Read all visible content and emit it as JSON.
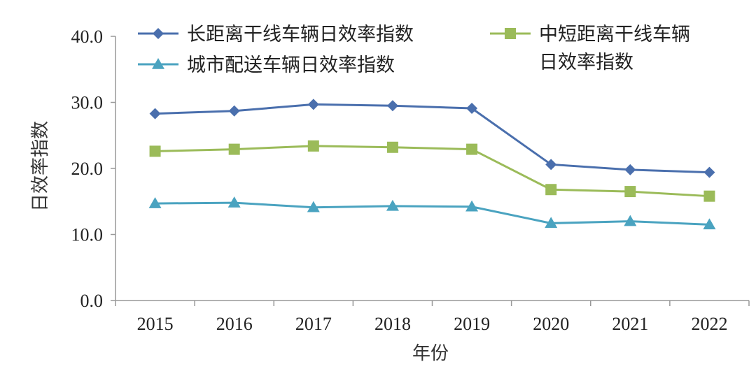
{
  "chart_data": {
    "type": "line",
    "title": "",
    "xlabel": "年份",
    "ylabel": "日效率指数",
    "ylim": [
      0,
      40
    ],
    "yticks": [
      "0.0",
      "10.0",
      "20.0",
      "30.0",
      "40.0"
    ],
    "categories": [
      "2015",
      "2016",
      "2017",
      "2018",
      "2019",
      "2020",
      "2021",
      "2022"
    ],
    "grid": false,
    "legend_position": "top",
    "series": [
      {
        "name": "长距离干线车辆日效率指数",
        "marker": "diamond",
        "color": "#4a6fad",
        "values": [
          28.3,
          28.7,
          29.7,
          29.5,
          29.1,
          20.6,
          19.8,
          19.4
        ]
      },
      {
        "name": "中短距离干线车辆日效率指数",
        "name_lines": [
          "中短距离干线车辆",
          "日效率指数"
        ],
        "marker": "square",
        "color": "#9bbb59",
        "values": [
          22.6,
          22.9,
          23.4,
          23.2,
          22.9,
          16.8,
          16.5,
          15.8
        ]
      },
      {
        "name": "城市配送车辆日效率指数",
        "marker": "triangle",
        "color": "#4aa3c0",
        "values": [
          14.7,
          14.8,
          14.1,
          14.3,
          14.2,
          11.7,
          12.0,
          11.5
        ]
      }
    ]
  }
}
